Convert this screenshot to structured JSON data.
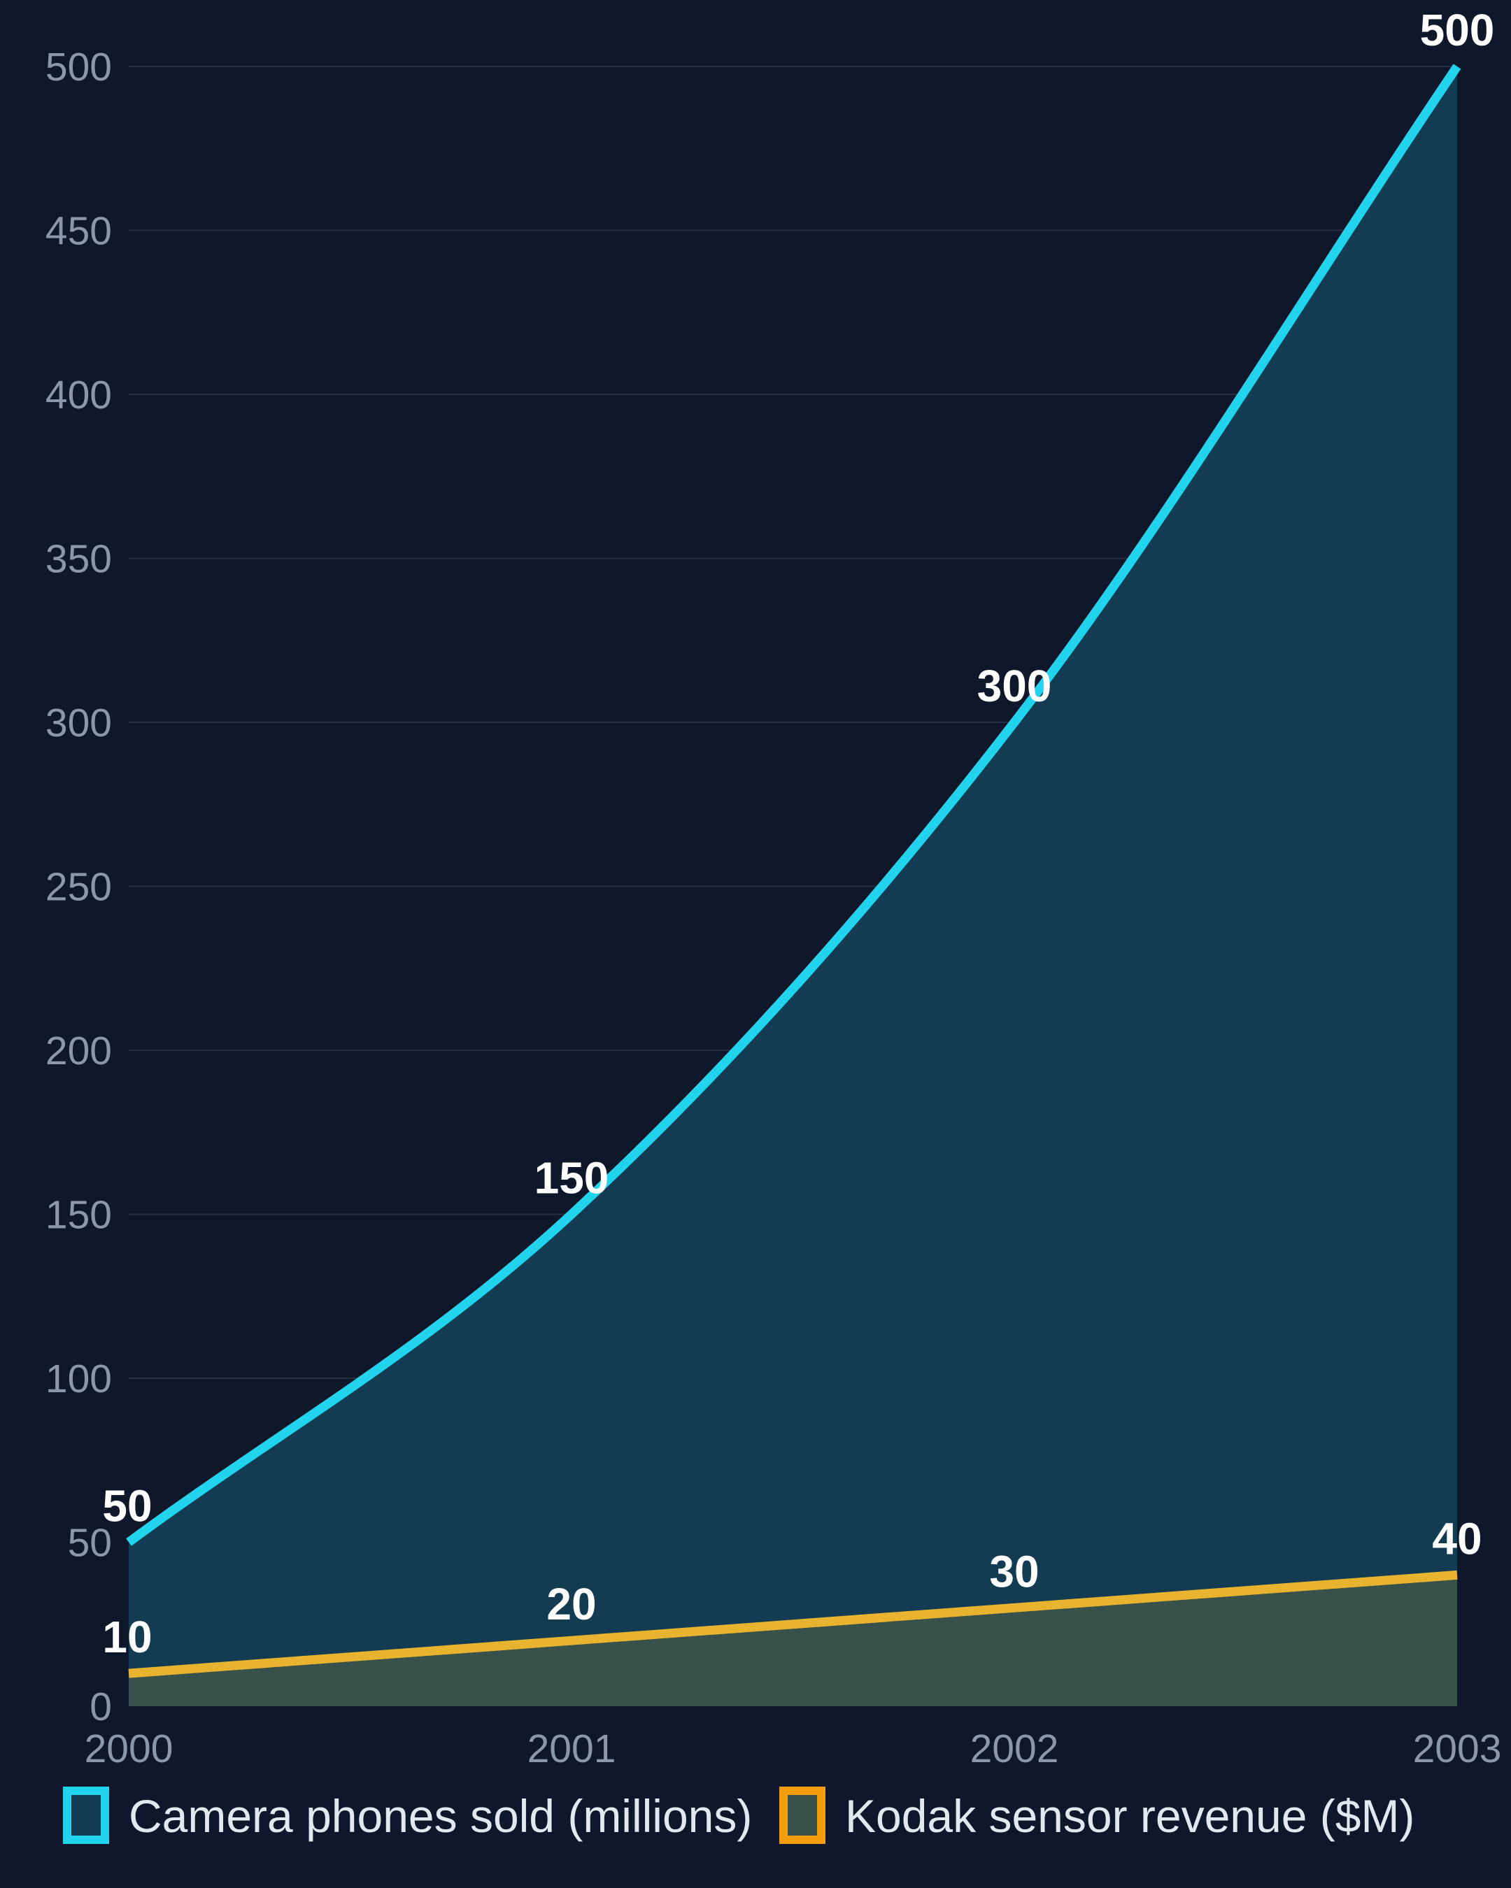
{
  "chart_data": {
    "type": "area",
    "x": [
      "2000",
      "2001",
      "2002",
      "2003"
    ],
    "ylim": [
      0,
      500
    ],
    "yticks": [
      0,
      50,
      100,
      150,
      200,
      250,
      300,
      350,
      400,
      450,
      500
    ],
    "grid": true,
    "legend_position": "bottom",
    "series": [
      {
        "name": "Camera phones sold (millions)",
        "values": [
          50,
          150,
          300,
          500
        ],
        "labels": [
          "50",
          "150",
          "300",
          "500"
        ],
        "color": "#22d3ee",
        "fill": "#133c52"
      },
      {
        "name": "Kodak sensor revenue ($M)",
        "values": [
          10,
          20,
          30,
          40
        ],
        "labels": [
          "10",
          "20",
          "30",
          "40"
        ],
        "color": "#e8b32e",
        "legend_color": "#f59e0b",
        "fill": "#38524b"
      }
    ]
  }
}
